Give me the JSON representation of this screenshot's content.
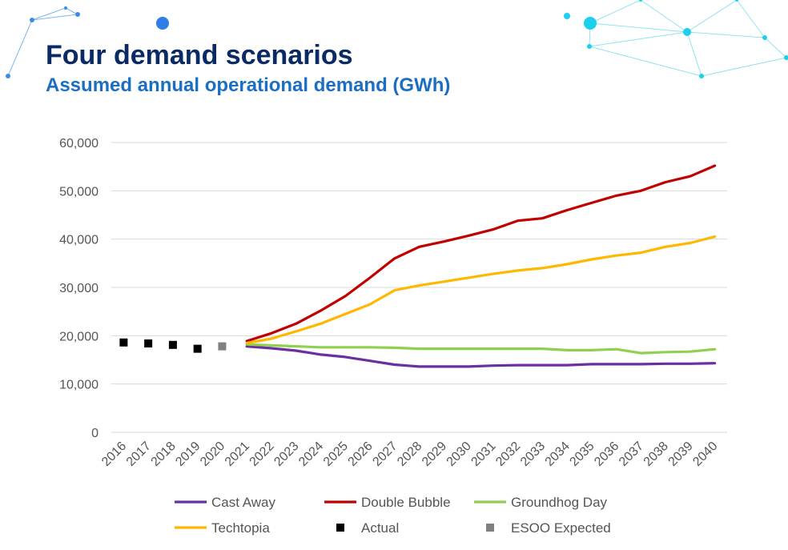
{
  "header": {
    "title": "Four demand scenarios",
    "subtitle": "Assumed annual operational demand (GWh)"
  },
  "colors": {
    "title": "#0a2a66",
    "subtitle": "#1a6fc4",
    "decoration": "#5fd8ea"
  },
  "chart_data": {
    "type": "line",
    "title": "",
    "xlabel": "",
    "ylabel": "",
    "ylim": [
      0,
      60000
    ],
    "yticks": [
      "0",
      "10,000",
      "20,000",
      "30,000",
      "40,000",
      "50,000",
      "60,000"
    ],
    "grid": true,
    "legend_position": "bottom",
    "categories": [
      "2016",
      "2017",
      "2018",
      "2019",
      "2020",
      "2021",
      "2022",
      "2023",
      "2024",
      "2025",
      "2026",
      "2027",
      "2028",
      "2029",
      "2030",
      "2031",
      "2032",
      "2033",
      "2034",
      "2035",
      "2036",
      "2037",
      "2038",
      "2039",
      "2040"
    ],
    "series": [
      {
        "name": "Cast Away",
        "kind": "line",
        "color": "#6a2fa0",
        "values": [
          null,
          null,
          null,
          null,
          null,
          17800,
          17400,
          16900,
          16100,
          15600,
          14800,
          14000,
          13600,
          13600,
          13600,
          13800,
          13900,
          13900,
          13900,
          14100,
          14100,
          14100,
          14200,
          14200,
          14300
        ]
      },
      {
        "name": "Double Bubble",
        "kind": "line",
        "color": "#c00000",
        "values": [
          null,
          null,
          null,
          null,
          null,
          18900,
          20500,
          22500,
          25200,
          28200,
          32000,
          36000,
          38400,
          39500,
          40700,
          42000,
          43800,
          44300,
          46000,
          47500,
          49000,
          50000,
          51800,
          53000,
          55200
        ]
      },
      {
        "name": "Groundhog Day",
        "kind": "line",
        "color": "#8fd14f",
        "values": [
          null,
          null,
          null,
          null,
          null,
          18200,
          18000,
          17800,
          17600,
          17600,
          17600,
          17500,
          17300,
          17300,
          17300,
          17300,
          17300,
          17300,
          17000,
          17000,
          17200,
          16400,
          16600,
          16700,
          17200
        ]
      },
      {
        "name": "Techtopia",
        "kind": "line",
        "color": "#ffb800",
        "values": [
          null,
          null,
          null,
          null,
          null,
          18500,
          19400,
          20900,
          22500,
          24500,
          26500,
          29400,
          30400,
          31200,
          32000,
          32800,
          33500,
          34000,
          34800,
          35800,
          36600,
          37200,
          38400,
          39200,
          40500
        ]
      },
      {
        "name": "Actual",
        "kind": "marker",
        "color": "#000000",
        "values": [
          18600,
          18400,
          18100,
          17300,
          null,
          null,
          null,
          null,
          null,
          null,
          null,
          null,
          null,
          null,
          null,
          null,
          null,
          null,
          null,
          null,
          null,
          null,
          null,
          null,
          null
        ]
      },
      {
        "name": "ESOO Expected",
        "kind": "marker",
        "color": "#808080",
        "values": [
          null,
          null,
          null,
          null,
          17800,
          null,
          null,
          null,
          null,
          null,
          null,
          null,
          null,
          null,
          null,
          null,
          null,
          null,
          null,
          null,
          null,
          null,
          null,
          null,
          null
        ]
      }
    ]
  }
}
